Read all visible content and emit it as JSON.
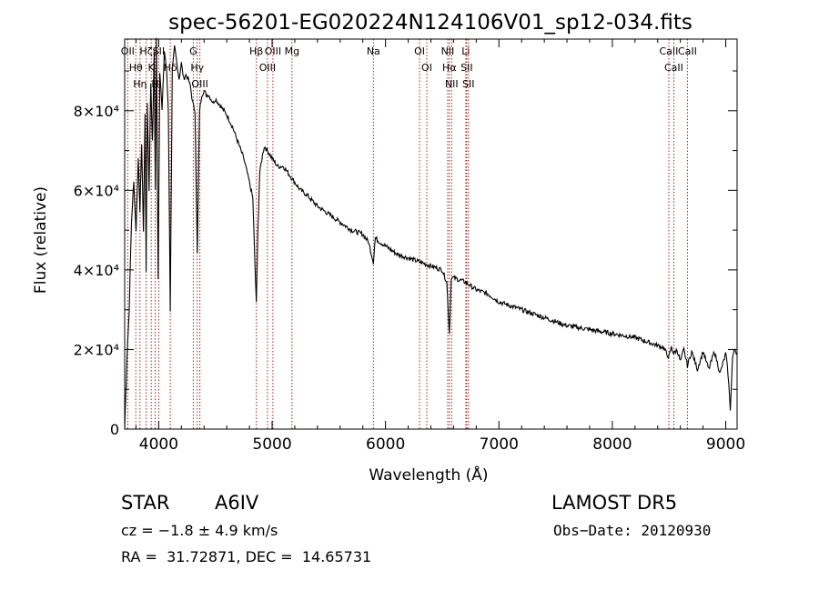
{
  "chart_data": {
    "type": "line",
    "title": "spec-56201-EG020224N124106V01_sp12-034.fits",
    "xlabel": "Wavelength (Å)",
    "ylabel": "Flux (relative)",
    "xlim": [
      3700,
      9100
    ],
    "ylim": [
      0,
      98000
    ],
    "x_ticks": [
      4000,
      5000,
      6000,
      7000,
      8000,
      9000
    ],
    "x_tick_labels": [
      "4000",
      "5000",
      "6000",
      "7000",
      "8000",
      "9000"
    ],
    "y_ticks": [
      0,
      20000,
      40000,
      60000,
      80000
    ],
    "y_tick_labels": [
      "0",
      "2×10⁴",
      "4×10⁴",
      "6×10⁴",
      "8×10⁴"
    ],
    "grid": false,
    "series": [
      {
        "x": [
          3700,
          3720,
          3740,
          3760,
          3780,
          3800,
          3820,
          3835,
          3850,
          3865,
          3880,
          3889,
          3900,
          3915,
          3930,
          3945,
          3960,
          3970,
          3980,
          3995,
          4010,
          4030,
          4050,
          4070,
          4085,
          4102,
          4120,
          4140,
          4160,
          4180,
          4200,
          4220,
          4240,
          4260,
          4280,
          4300,
          4320,
          4340,
          4360,
          4380,
          4400,
          4420,
          4440,
          4460,
          4480,
          4500,
          4550,
          4600,
          4650,
          4700,
          4750,
          4800,
          4830,
          4850,
          4861,
          4875,
          4890,
          4910,
          4930,
          4960,
          5000,
          5050,
          5100,
          5150,
          5200,
          5250,
          5300,
          5400,
          5500,
          5600,
          5700,
          5800,
          5850,
          5893,
          5910,
          5950,
          6000,
          6100,
          6200,
          6300,
          6400,
          6450,
          6500,
          6540,
          6563,
          6580,
          6600,
          6650,
          6700,
          6750,
          6800,
          6900,
          7000,
          7100,
          7200,
          7300,
          7400,
          7500,
          7600,
          7700,
          7800,
          7900,
          8000,
          8100,
          8200,
          8300,
          8400,
          8450,
          8498,
          8520,
          8542,
          8570,
          8600,
          8630,
          8662,
          8700,
          8750,
          8800,
          8850,
          8900,
          8950,
          9000,
          9020,
          9040,
          9060,
          9080,
          9100
        ],
        "y": [
          0,
          18000,
          30000,
          52000,
          62000,
          50000,
          68000,
          55000,
          72000,
          50000,
          79000,
          40000,
          82000,
          60000,
          87000,
          72000,
          95000,
          60000,
          98000,
          38000,
          90000,
          80000,
          95000,
          90000,
          80000,
          30000,
          90000,
          96000,
          92000,
          88000,
          92000,
          88000,
          89000,
          88000,
          86000,
          82000,
          80000,
          44000,
          80000,
          84000,
          85000,
          84000,
          84000,
          83000,
          82000,
          83000,
          81000,
          79000,
          76000,
          72000,
          68000,
          62000,
          58000,
          40000,
          32000,
          50000,
          64000,
          68000,
          71000,
          70000,
          68000,
          66000,
          66000,
          64000,
          62000,
          60000,
          59000,
          56000,
          54000,
          52000,
          50000,
          49000,
          47000,
          42000,
          48000,
          47000,
          46000,
          44000,
          43000,
          42000,
          41000,
          40500,
          40000,
          37000,
          24000,
          38000,
          38000,
          37500,
          37000,
          36000,
          35000,
          34000,
          32000,
          31000,
          30000,
          29000,
          28000,
          27000,
          26000,
          25500,
          25000,
          24500,
          24000,
          23500,
          23000,
          22000,
          21000,
          20500,
          18000,
          20500,
          19000,
          20000,
          17000,
          20000,
          16000,
          19500,
          15000,
          19500,
          15000,
          19500,
          14000,
          19000,
          14000,
          5000,
          18000,
          20000,
          19000
        ]
      }
    ],
    "lines": [
      {
        "x": 3727,
        "label": "OII"
      },
      {
        "x": 3798,
        "label": "Hθ"
      },
      {
        "x": 3835,
        "label": "Hη"
      },
      {
        "x": 3889,
        "label": "Hζ"
      },
      {
        "x": 3934,
        "label": "K"
      },
      {
        "x": 3969,
        "label": "H"
      },
      {
        "x": 4000,
        "label": "SII"
      },
      {
        "x": 4102,
        "label": "Hδ"
      },
      {
        "x": 4305,
        "label": "G"
      },
      {
        "x": 4340,
        "label": "Hγ"
      },
      {
        "x": 4363,
        "label": "OIII"
      },
      {
        "x": 4861,
        "label": "Hβ"
      },
      {
        "x": 4959,
        "label": "OIII"
      },
      {
        "x": 5007,
        "label": "OIII"
      },
      {
        "x": 5175,
        "label": "Mg"
      },
      {
        "x": 5893,
        "label": "Na"
      },
      {
        "x": 6300,
        "label": "OI"
      },
      {
        "x": 6364,
        "label": "OI"
      },
      {
        "x": 6548,
        "label": "NII"
      },
      {
        "x": 6563,
        "label": "Hα"
      },
      {
        "x": 6583,
        "label": "NII"
      },
      {
        "x": 6708,
        "label": "Li"
      },
      {
        "x": 6716,
        "label": "SII"
      },
      {
        "x": 6731,
        "label": "SII"
      },
      {
        "x": 8498,
        "label": "CaII"
      },
      {
        "x": 8542,
        "label": "CaII"
      },
      {
        "x": 8662,
        "label": "CaII"
      }
    ]
  },
  "footer": {
    "object_type": "STAR",
    "spectral_class": "A6IV",
    "survey": "LAMOST DR5",
    "cz_text": "cz = −1.8 ± 4.9 km/s",
    "obs_date": "Obs−Date: 20120930",
    "coords": "RA =  31.72871, DEC =  14.65731"
  },
  "colors": {
    "line_marker": "#b22222",
    "spectrum": "#000000"
  }
}
